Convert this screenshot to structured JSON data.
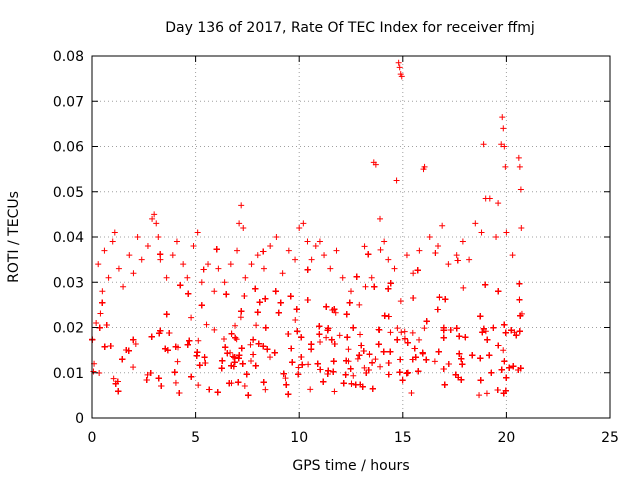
{
  "chart_data": {
    "type": "scatter",
    "title": "Day 136 of 2017, Rate Of TEC Index for receiver ffmj",
    "xlabel": "GPS time / hours",
    "ylabel": "ROTI / TECUs",
    "xlim": [
      0,
      25
    ],
    "ylim": [
      0,
      0.08
    ],
    "x_ticks": [
      0,
      5,
      10,
      15,
      20,
      25
    ],
    "y_ticks": [
      0,
      0.01,
      0.02,
      0.03,
      0.04,
      0.05,
      0.06,
      0.07,
      0.08
    ],
    "x_tick_labels": [
      "0",
      "5",
      "10",
      "15",
      "20",
      "25"
    ],
    "y_tick_labels": [
      "0",
      "0.01",
      "0.02",
      "0.03",
      "0.04",
      "0.05",
      "0.06",
      "0.07",
      "0.08"
    ],
    "grid": true,
    "marker": "plus",
    "color": "#ff0000",
    "series": [
      {
        "name": "ROTI",
        "x_range": [
          0,
          20.75
        ],
        "dense_band": [
          0.005,
          0.03
        ],
        "points": [
          [
            0.1,
            0.012
          ],
          [
            0.2,
            0.021
          ],
          [
            0.3,
            0.034
          ],
          [
            0.5,
            0.028
          ],
          [
            0.6,
            0.037
          ],
          [
            0.8,
            0.031
          ],
          [
            1.0,
            0.039
          ],
          [
            1.1,
            0.041
          ],
          [
            1.3,
            0.033
          ],
          [
            1.5,
            0.029
          ],
          [
            1.8,
            0.036
          ],
          [
            2.0,
            0.032
          ],
          [
            2.2,
            0.04
          ],
          [
            2.4,
            0.035
          ],
          [
            2.7,
            0.038
          ],
          [
            2.9,
            0.044
          ],
          [
            3.0,
            0.045
          ],
          [
            3.1,
            0.043
          ],
          [
            3.2,
            0.04
          ],
          [
            3.3,
            0.035
          ],
          [
            3.6,
            0.031
          ],
          [
            3.9,
            0.036
          ],
          [
            4.1,
            0.039
          ],
          [
            4.4,
            0.034
          ],
          [
            4.6,
            0.031
          ],
          [
            4.9,
            0.038
          ],
          [
            5.1,
            0.041
          ],
          [
            5.3,
            0.03
          ],
          [
            5.6,
            0.034
          ],
          [
            5.9,
            0.028
          ],
          [
            6.1,
            0.033
          ],
          [
            6.4,
            0.03
          ],
          [
            6.7,
            0.034
          ],
          [
            7.0,
            0.037
          ],
          [
            7.1,
            0.043
          ],
          [
            7.2,
            0.047
          ],
          [
            7.3,
            0.042
          ],
          [
            7.4,
            0.031
          ],
          [
            7.7,
            0.034
          ],
          [
            8.0,
            0.036
          ],
          [
            8.3,
            0.033
          ],
          [
            8.6,
            0.038
          ],
          [
            8.9,
            0.04
          ],
          [
            9.2,
            0.032
          ],
          [
            9.5,
            0.037
          ],
          [
            9.8,
            0.035
          ],
          [
            10.0,
            0.042
          ],
          [
            10.2,
            0.043
          ],
          [
            10.4,
            0.039
          ],
          [
            10.6,
            0.035
          ],
          [
            10.8,
            0.038
          ],
          [
            11.0,
            0.039
          ],
          [
            11.2,
            0.036
          ],
          [
            11.5,
            0.033
          ],
          [
            11.8,
            0.037
          ],
          [
            12.1,
            0.031
          ],
          [
            12.5,
            0.028
          ],
          [
            12.9,
            0.025
          ],
          [
            13.2,
            0.029
          ],
          [
            13.5,
            0.031
          ],
          [
            13.6,
            0.0565
          ],
          [
            13.7,
            0.056
          ],
          [
            13.9,
            0.044
          ],
          [
            14.1,
            0.039
          ],
          [
            14.3,
            0.035
          ],
          [
            14.6,
            0.033
          ],
          [
            14.7,
            0.0525
          ],
          [
            14.8,
            0.0785
          ],
          [
            14.85,
            0.0775
          ],
          [
            14.9,
            0.076
          ],
          [
            14.95,
            0.0755
          ],
          [
            15.2,
            0.036
          ],
          [
            15.5,
            0.032
          ],
          [
            15.8,
            0.037
          ],
          [
            16.0,
            0.055
          ],
          [
            16.05,
            0.0555
          ],
          [
            16.3,
            0.04
          ],
          [
            16.7,
            0.038
          ],
          [
            16.9,
            0.0425
          ],
          [
            17.2,
            0.034
          ],
          [
            17.6,
            0.036
          ],
          [
            17.9,
            0.039
          ],
          [
            18.2,
            0.035
          ],
          [
            18.5,
            0.043
          ],
          [
            18.8,
            0.041
          ],
          [
            18.9,
            0.0605
          ],
          [
            19.0,
            0.0485
          ],
          [
            19.2,
            0.0485
          ],
          [
            19.5,
            0.04
          ],
          [
            19.6,
            0.0475
          ],
          [
            19.75,
            0.0605
          ],
          [
            19.8,
            0.0665
          ],
          [
            19.85,
            0.064
          ],
          [
            19.9,
            0.06
          ],
          [
            19.95,
            0.0555
          ],
          [
            20.0,
            0.041
          ],
          [
            20.3,
            0.036
          ],
          [
            20.6,
            0.0575
          ],
          [
            20.65,
            0.0555
          ],
          [
            20.7,
            0.0505
          ],
          [
            20.72,
            0.042
          ],
          [
            20.75,
            0.023
          ]
        ]
      }
    ]
  }
}
